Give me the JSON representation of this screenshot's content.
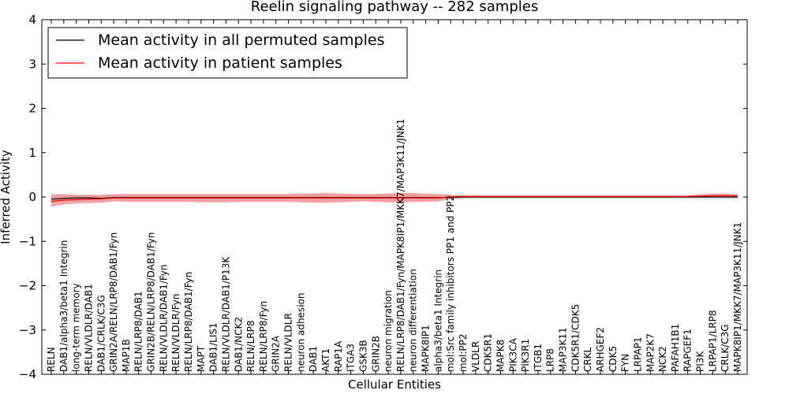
{
  "chart_data": {
    "type": "line",
    "title": "Reelin signaling pathway -- 282 samples",
    "xlabel": "Cellular Entities",
    "ylabel": "Inferred Activity",
    "ylim": [
      -4,
      4
    ],
    "yticks": [
      4,
      3,
      2,
      1,
      0,
      -1,
      -2,
      -3,
      -4
    ],
    "ytick_labels": [
      "4",
      "3",
      "2",
      "1",
      "0",
      "−1",
      "−2",
      "−3",
      "−4"
    ],
    "grid": false,
    "legend_position": "top-left",
    "categories": [
      "RELN",
      "DAB1/alpha3/beta1 Integrin",
      "long-term memory",
      "RELN/VLDLR/DAB1",
      "DAB1/CRLK/C3G",
      "GRIN2A/RELN/LRP8/DAB1/Fyn",
      "MAP1B",
      "RELN/LRP8/DAB1",
      "GRIN2B/RELN/LRP8/DAB1/Fyn",
      "RELN/VLDLR/DAB1/Fyn",
      "RELN/VLDLR/Fyn",
      "RELN/LRP8/DAB1/Fyn",
      "MAPT",
      "DAB1/LIS1",
      "RELN/VLDLR/DAB1/P13K",
      "DAB1/NCK2",
      "RELN/LRP8",
      "RELN/LRP8/Fyn",
      "GRIN2A",
      "RELN/VLDLR",
      "neuron adhesion",
      "DAB1",
      "AKT1",
      "RAP1A",
      "ITGA3",
      "GSK3B",
      "GRIN2B",
      "neuron migration",
      "RELN/LRP8/DAB1/Fyn/MAPK8IP1/MKK7/MAP3K11/JNK1",
      "neuron differentiation",
      "MAPK8IP1",
      "alpha3/beta1 Integrin",
      "mol:Src family inhibitors PP1 and PP2",
      "mol:PP2",
      "VLDLR",
      "CDK5R1",
      "MAPK8",
      "PIK3CA",
      "PIK3R1",
      "ITGB1",
      "LRP8",
      "MAP3K11",
      "CDK5R1/CDK5",
      "CRKL",
      "ARHGEF2",
      "CDK5",
      "FYN",
      "LRPAP1",
      "MAP2K7",
      "NCK2",
      "PAFAH1B1",
      "RAPGEF1",
      "PI3K",
      "LRPAP1/LRP8",
      "CRLK/C3G",
      "MAPK8IP1/MKK7/MAP3K11/JNK1"
    ],
    "series": [
      {
        "name": "Mean activity in all permuted samples",
        "color": "#000000",
        "band_color": "#bbbbbb",
        "values": [
          -0.05,
          -0.03,
          -0.02,
          -0.02,
          -0.03,
          -0.01,
          -0.01,
          -0.01,
          -0.01,
          -0.01,
          -0.01,
          -0.01,
          -0.01,
          -0.01,
          -0.01,
          -0.01,
          -0.01,
          -0.01,
          -0.01,
          -0.01,
          -0.01,
          -0.01,
          -0.01,
          -0.01,
          -0.01,
          -0.01,
          -0.01,
          -0.01,
          -0.01,
          -0.01,
          -0.01,
          -0.01,
          -0.01,
          0.0,
          0.0,
          0.0,
          0.0,
          0.0,
          0.0,
          0.0,
          0.0,
          0.0,
          0.0,
          0.0,
          0.0,
          0.0,
          0.0,
          0.0,
          0.0,
          0.0,
          0.0,
          0.0,
          0.0,
          0.0,
          0.0,
          0.0
        ],
        "band_low": [
          -0.12,
          -0.1,
          -0.09,
          -0.09,
          -0.1,
          -0.08,
          -0.08,
          -0.08,
          -0.08,
          -0.08,
          -0.08,
          -0.08,
          -0.08,
          -0.08,
          -0.08,
          -0.08,
          -0.08,
          -0.08,
          -0.08,
          -0.08,
          -0.08,
          -0.08,
          -0.08,
          -0.08,
          -0.08,
          -0.08,
          -0.08,
          -0.08,
          -0.08,
          -0.08,
          -0.08,
          -0.08,
          -0.07,
          -0.05,
          -0.05,
          -0.05,
          -0.05,
          -0.05,
          -0.05,
          -0.05,
          -0.05,
          -0.05,
          -0.05,
          -0.05,
          -0.05,
          -0.05,
          -0.05,
          -0.05,
          -0.05,
          -0.05,
          -0.05,
          -0.05,
          -0.05,
          -0.05,
          -0.05,
          -0.05
        ],
        "band_high": [
          0.02,
          0.04,
          0.05,
          0.05,
          0.04,
          0.06,
          0.06,
          0.06,
          0.06,
          0.06,
          0.06,
          0.06,
          0.06,
          0.06,
          0.06,
          0.06,
          0.06,
          0.06,
          0.06,
          0.06,
          0.06,
          0.06,
          0.06,
          0.06,
          0.06,
          0.06,
          0.06,
          0.06,
          0.06,
          0.06,
          0.06,
          0.06,
          0.06,
          0.05,
          0.05,
          0.05,
          0.05,
          0.05,
          0.05,
          0.05,
          0.05,
          0.05,
          0.05,
          0.05,
          0.05,
          0.05,
          0.05,
          0.05,
          0.05,
          0.05,
          0.05,
          0.05,
          0.05,
          0.05,
          0.05,
          0.05
        ]
      },
      {
        "name": "Mean activity in patient samples",
        "color": "#ff0000",
        "band_color": "#f08080",
        "values": [
          -0.1,
          -0.07,
          -0.06,
          -0.05,
          -0.04,
          -0.02,
          -0.02,
          -0.02,
          -0.02,
          -0.02,
          -0.02,
          -0.02,
          -0.02,
          -0.02,
          -0.02,
          -0.02,
          -0.02,
          -0.02,
          -0.02,
          -0.02,
          -0.02,
          -0.02,
          -0.02,
          -0.02,
          -0.02,
          -0.02,
          -0.02,
          -0.02,
          -0.02,
          -0.02,
          -0.02,
          -0.02,
          0.0,
          0.01,
          0.01,
          0.01,
          0.01,
          0.01,
          0.01,
          0.01,
          0.01,
          0.01,
          0.01,
          0.01,
          0.01,
          0.01,
          0.01,
          0.01,
          0.01,
          0.01,
          0.01,
          0.01,
          0.02,
          0.03,
          0.03,
          0.02
        ],
        "band_low": [
          -0.22,
          -0.17,
          -0.15,
          -0.14,
          -0.13,
          -0.1,
          -0.11,
          -0.11,
          -0.11,
          -0.11,
          -0.11,
          -0.11,
          -0.12,
          -0.12,
          -0.12,
          -0.11,
          -0.11,
          -0.11,
          -0.11,
          -0.11,
          -0.12,
          -0.13,
          -0.13,
          -0.12,
          -0.11,
          -0.1,
          -0.11,
          -0.12,
          -0.12,
          -0.11,
          -0.11,
          -0.1,
          -0.04,
          -0.02,
          -0.01,
          -0.01,
          -0.01,
          -0.01,
          -0.01,
          -0.01,
          -0.01,
          -0.01,
          -0.01,
          -0.01,
          -0.01,
          -0.01,
          -0.01,
          -0.01,
          -0.01,
          -0.01,
          -0.01,
          -0.01,
          -0.01,
          0.0,
          0.0,
          -0.01
        ],
        "band_high": [
          0.07,
          0.06,
          0.05,
          0.05,
          0.05,
          0.06,
          0.07,
          0.07,
          0.07,
          0.07,
          0.07,
          0.07,
          0.07,
          0.07,
          0.07,
          0.07,
          0.07,
          0.07,
          0.07,
          0.07,
          0.08,
          0.08,
          0.09,
          0.08,
          0.07,
          0.07,
          0.07,
          0.08,
          0.09,
          0.09,
          0.08,
          0.07,
          0.05,
          0.04,
          0.03,
          0.03,
          0.03,
          0.03,
          0.03,
          0.03,
          0.03,
          0.03,
          0.03,
          0.03,
          0.03,
          0.03,
          0.03,
          0.03,
          0.03,
          0.03,
          0.03,
          0.03,
          0.06,
          0.08,
          0.08,
          0.07
        ]
      }
    ]
  }
}
